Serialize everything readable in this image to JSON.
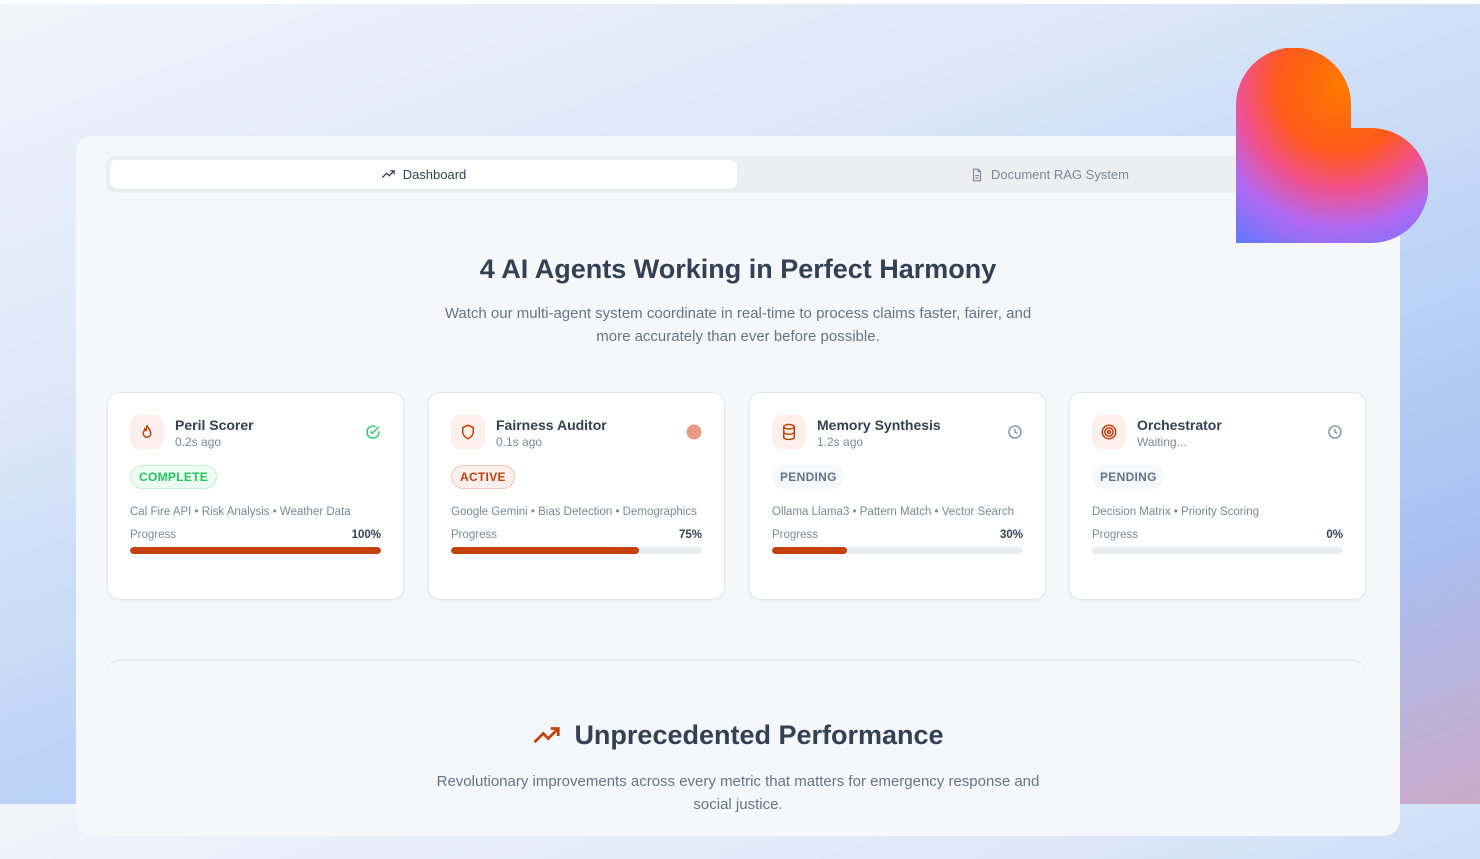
{
  "tabs": [
    {
      "label": "Dashboard",
      "icon": "trending-up-icon",
      "active": true
    },
    {
      "label": "Document RAG System",
      "icon": "file-text-icon",
      "active": false
    }
  ],
  "hero": {
    "title": "4 AI Agents Working in Perfect Harmony",
    "subtitle": "Watch our multi-agent system coordinate in real-time to process claims faster, fairer, and more accurately than ever before possible."
  },
  "agents": [
    {
      "name": "Peril Scorer",
      "time": "0.2s ago",
      "icon": "flame-icon",
      "status": "COMPLETE",
      "status_icon": "check-circle-icon",
      "tags": "Cal Fire API • Risk Analysis • Weather Data",
      "progress_label": "Progress",
      "progress": 100,
      "progress_text": "100%"
    },
    {
      "name": "Fairness Auditor",
      "time": "0.1s ago",
      "icon": "shield-icon",
      "status": "ACTIVE",
      "status_icon": "pulse-dot-icon",
      "tags": "Google Gemini • Bias Detection • Demographics",
      "progress_label": "Progress",
      "progress": 75,
      "progress_text": "75%"
    },
    {
      "name": "Memory Synthesis",
      "time": "1.2s ago",
      "icon": "database-icon",
      "status": "PENDING",
      "status_icon": "clock-icon",
      "tags": "Ollama Llama3 • Pattern Match • Vector Search",
      "progress_label": "Progress",
      "progress": 30,
      "progress_text": "30%"
    },
    {
      "name": "Orchestrator",
      "time": "Waiting...",
      "icon": "target-icon",
      "status": "PENDING",
      "status_icon": "clock-icon",
      "tags": "Decision Matrix • Priority Scoring",
      "progress_label": "Progress",
      "progress": 0,
      "progress_text": "0%"
    }
  ],
  "performance": {
    "title": "Unprecedented Performance",
    "icon": "trending-up-icon",
    "subtitle": "Revolutionary improvements across every metric that matters for emergency response and social justice."
  },
  "colors": {
    "accent": "#c2410c",
    "complete": "#22c55e",
    "text": "#334155"
  }
}
